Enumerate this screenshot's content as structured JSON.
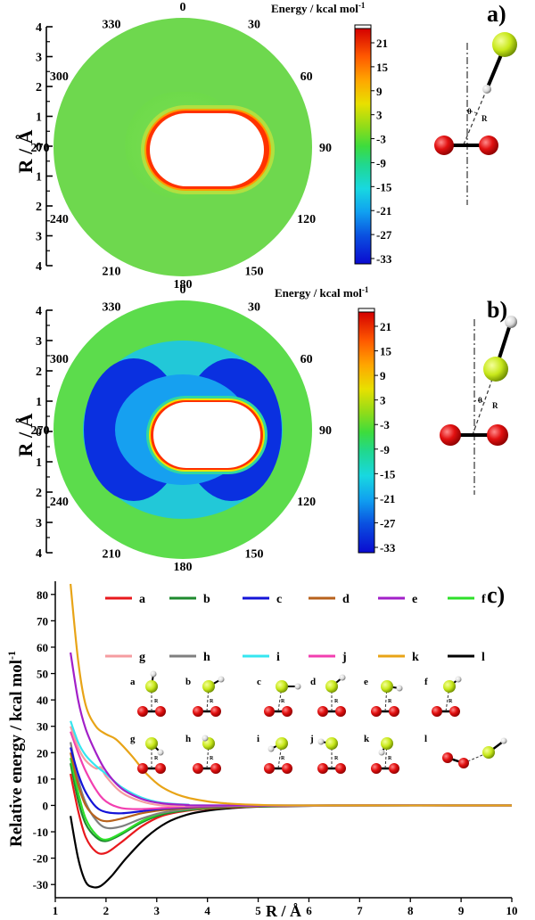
{
  "panels": [
    {
      "id": "a",
      "label": "a)",
      "colorbar_title": "Energy / kcal mol",
      "colorbar_title_sup": "-1",
      "colorbar_ticks": [
        "21",
        "15",
        "9",
        "3",
        "-3",
        "-9",
        "-15",
        "-21",
        "-27",
        "-33"
      ],
      "angles": [
        "0",
        "30",
        "60",
        "90",
        "120",
        "150",
        "180",
        "210",
        "240",
        "270",
        "300",
        "330"
      ],
      "r_ticks": [
        "4",
        "3",
        "2",
        "1",
        "0",
        "1",
        "2",
        "3",
        "4"
      ],
      "ylabel": "R / Å",
      "inset": {
        "theta": "θ",
        "r": "R"
      }
    },
    {
      "id": "b",
      "label": "b)",
      "colorbar_title": "Energy / kcal mol",
      "colorbar_title_sup": "-1",
      "colorbar_ticks": [
        "21",
        "15",
        "9",
        "3",
        "-3",
        "-9",
        "-15",
        "-21",
        "-27",
        "-33"
      ],
      "angles": [
        "0",
        "30",
        "60",
        "90",
        "120",
        "150",
        "180",
        "210",
        "240",
        "270",
        "300",
        "330"
      ],
      "r_ticks": [
        "4",
        "3",
        "2",
        "1",
        "0",
        "1",
        "2",
        "3",
        "4"
      ],
      "ylabel": "R / Å",
      "inset": {
        "theta": "θ",
        "r": "R"
      }
    }
  ],
  "panel_c_label": "c)",
  "colors": {
    "a": "#e8191d",
    "b": "#1e8a2e",
    "c": "#1414d8",
    "d": "#b8621c",
    "e": "#a21fc8",
    "f": "#2ee02a",
    "g": "#f59ca0",
    "h": "#7f7f7f",
    "i": "#35e6f0",
    "j": "#f23fb0",
    "k": "#e8a417",
    "l": "#000000"
  },
  "chart_data": {
    "type": "line",
    "title": "",
    "xlabel": "R / Å",
    "ylabel": "Relative energy / kcal mol",
    "ylabel_sup": "-1",
    "xlim": [
      1,
      10
    ],
    "ylim": [
      -35,
      85
    ],
    "x_ticks": [
      "1",
      "2",
      "3",
      "4",
      "5",
      "6",
      "7",
      "8",
      "9",
      "10"
    ],
    "y_ticks": [
      "80",
      "70",
      "60",
      "50",
      "40",
      "30",
      "20",
      "10",
      "0",
      "-10",
      "-20",
      "-30"
    ],
    "legend": [
      "a",
      "b",
      "c",
      "d",
      "e",
      "f",
      "g",
      "h",
      "i",
      "j",
      "k",
      "l"
    ],
    "series": [
      {
        "name": "l",
        "points": [
          [
            1.3,
            -4
          ],
          [
            1.45,
            -20
          ],
          [
            1.6,
            -29
          ],
          [
            1.75,
            -31
          ],
          [
            1.9,
            -30.5
          ],
          [
            2.1,
            -27
          ],
          [
            2.4,
            -20
          ],
          [
            2.8,
            -12
          ],
          [
            3.2,
            -6.5
          ],
          [
            3.6,
            -3.5
          ],
          [
            4.0,
            -2
          ],
          [
            4.5,
            -1
          ],
          [
            5.0,
            -0.5
          ],
          [
            6.0,
            -0.2
          ],
          [
            7.0,
            0
          ],
          [
            10,
            0
          ]
        ]
      },
      {
        "name": "a",
        "points": [
          [
            1.3,
            12
          ],
          [
            1.45,
            -2
          ],
          [
            1.6,
            -12
          ],
          [
            1.8,
            -17.5
          ],
          [
            2.0,
            -18
          ],
          [
            2.3,
            -14
          ],
          [
            2.7,
            -8
          ],
          [
            3.1,
            -4
          ],
          [
            3.6,
            -2
          ],
          [
            4.2,
            -1
          ],
          [
            5.0,
            -0.4
          ],
          [
            6.5,
            0
          ],
          [
            10,
            0
          ]
        ]
      },
      {
        "name": "b",
        "points": [
          [
            1.3,
            16
          ],
          [
            1.45,
            2
          ],
          [
            1.6,
            -7
          ],
          [
            1.8,
            -12
          ],
          [
            2.0,
            -13.5
          ],
          [
            2.3,
            -11
          ],
          [
            2.7,
            -6.5
          ],
          [
            3.1,
            -3.5
          ],
          [
            3.6,
            -1.8
          ],
          [
            4.2,
            -0.8
          ],
          [
            5.0,
            -0.3
          ],
          [
            6.5,
            0
          ],
          [
            10,
            0
          ]
        ]
      },
      {
        "name": "f",
        "points": [
          [
            1.3,
            18
          ],
          [
            1.45,
            5
          ],
          [
            1.6,
            -5
          ],
          [
            1.8,
            -11
          ],
          [
            2.0,
            -13
          ],
          [
            2.3,
            -10.5
          ],
          [
            2.7,
            -6
          ],
          [
            3.1,
            -3
          ],
          [
            3.6,
            -1.5
          ],
          [
            4.2,
            -0.7
          ],
          [
            5.0,
            -0.3
          ],
          [
            6.5,
            0
          ],
          [
            10,
            0
          ]
        ]
      },
      {
        "name": "h",
        "points": [
          [
            1.3,
            24
          ],
          [
            1.45,
            10
          ],
          [
            1.6,
            1
          ],
          [
            1.8,
            -5.5
          ],
          [
            2.0,
            -8.5
          ],
          [
            2.3,
            -8
          ],
          [
            2.7,
            -5
          ],
          [
            3.1,
            -2.8
          ],
          [
            3.6,
            -1.4
          ],
          [
            4.2,
            -0.6
          ],
          [
            5.0,
            -0.2
          ],
          [
            6.5,
            0
          ],
          [
            10,
            0
          ]
        ]
      },
      {
        "name": "d",
        "points": [
          [
            1.3,
            20
          ],
          [
            1.45,
            8
          ],
          [
            1.6,
            0
          ],
          [
            1.8,
            -4.5
          ],
          [
            2.0,
            -6
          ],
          [
            2.3,
            -5
          ],
          [
            2.7,
            -3
          ],
          [
            3.1,
            -1.8
          ],
          [
            3.6,
            -1
          ],
          [
            4.2,
            -0.5
          ],
          [
            5.0,
            -0.2
          ],
          [
            6.5,
            0
          ],
          [
            10,
            0
          ]
        ]
      },
      {
        "name": "c",
        "points": [
          [
            1.3,
            22
          ],
          [
            1.45,
            12
          ],
          [
            1.6,
            5
          ],
          [
            1.8,
            -0.5
          ],
          [
            2.0,
            -2.5
          ],
          [
            2.3,
            -3
          ],
          [
            2.7,
            -2.2
          ],
          [
            3.1,
            -1.3
          ],
          [
            3.6,
            -0.7
          ],
          [
            4.2,
            -0.3
          ],
          [
            5.0,
            -0.1
          ],
          [
            6.5,
            0
          ],
          [
            10,
            0
          ]
        ]
      },
      {
        "name": "j",
        "points": [
          [
            1.3,
            28
          ],
          [
            1.45,
            20
          ],
          [
            1.6,
            13
          ],
          [
            1.8,
            6
          ],
          [
            2.0,
            1.5
          ],
          [
            2.3,
            -1
          ],
          [
            2.7,
            -1.4
          ],
          [
            3.1,
            -1
          ],
          [
            3.6,
            -0.5
          ],
          [
            4.2,
            -0.2
          ],
          [
            5.0,
            -0.1
          ],
          [
            6.5,
            0
          ],
          [
            10,
            0
          ]
        ]
      },
      {
        "name": "g",
        "points": [
          [
            1.3,
            30
          ],
          [
            1.45,
            22
          ],
          [
            1.6,
            17
          ],
          [
            1.8,
            14
          ],
          [
            1.9,
            14.5
          ],
          [
            2.0,
            11
          ],
          [
            2.3,
            5
          ],
          [
            2.7,
            1.5
          ],
          [
            3.1,
            0
          ],
          [
            3.6,
            -0.2
          ],
          [
            4.2,
            -0.1
          ],
          [
            5.0,
            0
          ],
          [
            10,
            0
          ]
        ]
      },
      {
        "name": "i",
        "points": [
          [
            1.3,
            32
          ],
          [
            1.45,
            24
          ],
          [
            1.6,
            19
          ],
          [
            1.8,
            15
          ],
          [
            2.0,
            12
          ],
          [
            2.3,
            7
          ],
          [
            2.7,
            3
          ],
          [
            3.1,
            1
          ],
          [
            3.6,
            0.3
          ],
          [
            4.2,
            0
          ],
          [
            10,
            0
          ]
        ]
      },
      {
        "name": "e",
        "points": [
          [
            1.3,
            58
          ],
          [
            1.45,
            40
          ],
          [
            1.6,
            29
          ],
          [
            1.8,
            20
          ],
          [
            2.0,
            13
          ],
          [
            2.3,
            6.5
          ],
          [
            2.7,
            2.5
          ],
          [
            3.1,
            0.8
          ],
          [
            3.6,
            0.2
          ],
          [
            4.2,
            0
          ],
          [
            10,
            0
          ]
        ]
      },
      {
        "name": "k",
        "points": [
          [
            1.3,
            84
          ],
          [
            1.45,
            55
          ],
          [
            1.6,
            38
          ],
          [
            1.8,
            30
          ],
          [
            2.0,
            27
          ],
          [
            2.2,
            25
          ],
          [
            2.5,
            19
          ],
          [
            2.8,
            12
          ],
          [
            3.1,
            7
          ],
          [
            3.5,
            3.5
          ],
          [
            4.0,
            1.5
          ],
          [
            4.5,
            0.6
          ],
          [
            5.0,
            0.2
          ],
          [
            6.0,
            0
          ],
          [
            10,
            0
          ]
        ]
      }
    ]
  },
  "struct_labels": [
    "a",
    "b",
    "c",
    "d",
    "e",
    "f",
    "g",
    "h",
    "i",
    "j",
    "k",
    "l"
  ],
  "struct_r_label": "R"
}
